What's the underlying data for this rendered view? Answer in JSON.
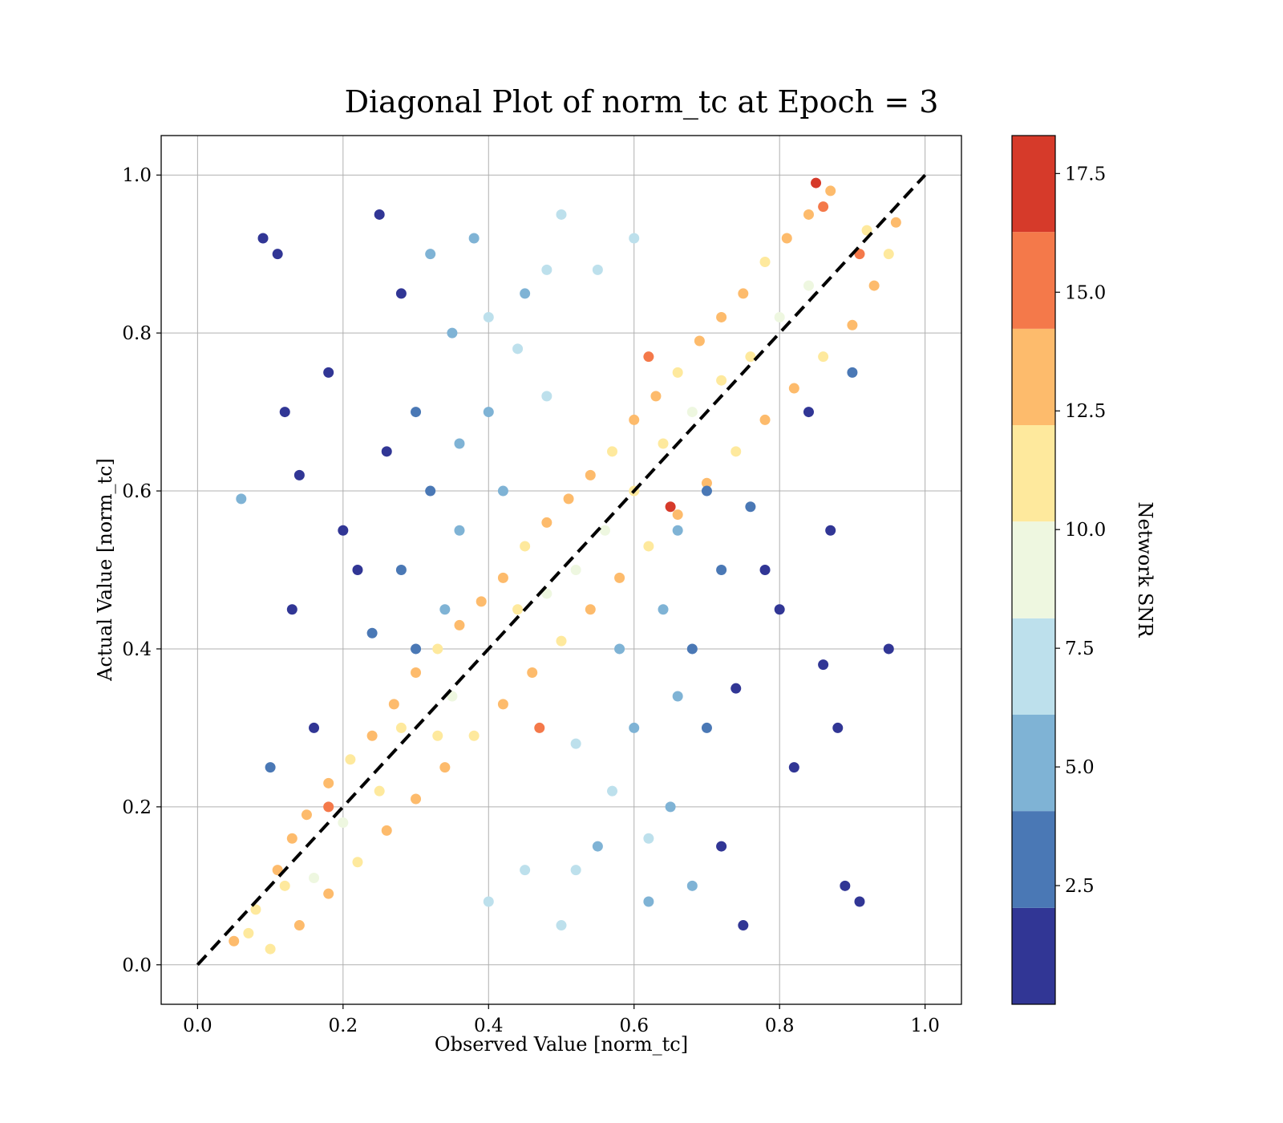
{
  "chart_data": {
    "type": "scatter",
    "title": "Diagonal Plot of norm_tc at Epoch = 3",
    "xlabel": "Observed Value [norm_tc]",
    "ylabel": "Actual Value [norm_tc]",
    "xlim": [
      -0.05,
      1.05
    ],
    "ylim": [
      -0.05,
      1.05
    ],
    "xticks": [
      0.0,
      0.2,
      0.4,
      0.6,
      0.8,
      1.0
    ],
    "yticks": [
      0.0,
      0.2,
      0.4,
      0.6,
      0.8,
      1.0
    ],
    "xtick_labels": [
      "0.0",
      "0.2",
      "0.4",
      "0.6",
      "0.8",
      "1.0"
    ],
    "ytick_labels": [
      "0.0",
      "0.2",
      "0.4",
      "0.6",
      "0.8",
      "1.0"
    ],
    "grid": true,
    "reference_line": {
      "x": [
        0,
        1
      ],
      "y": [
        0,
        1
      ],
      "style": "dashed",
      "color": "#000000"
    },
    "colorbar": {
      "label": "Network SNR",
      "range": [
        0.0,
        18.3
      ],
      "bounds": [
        0.0,
        2.03,
        4.07,
        6.1,
        8.13,
        10.17,
        12.2,
        14.23,
        16.27,
        18.3
      ],
      "colors": [
        "#313695",
        "#4a78b5",
        "#7fb3d5",
        "#bde0ec",
        "#eef7e0",
        "#fee99d",
        "#fdbb6c",
        "#f4794a",
        "#d63a2a",
        "#a50026"
      ],
      "ticks": [
        2.5,
        5.0,
        7.5,
        10.0,
        12.5,
        15.0,
        17.5
      ],
      "tick_labels": [
        "2.5",
        "5.0",
        "7.5",
        "10.0",
        "12.5",
        "15.0",
        "17.5"
      ]
    },
    "series": [
      {
        "name": "",
        "description_of_distribution": ""
      }
    ],
    "points": [
      [
        0.05,
        0.03,
        13
      ],
      [
        0.08,
        0.07,
        12
      ],
      [
        0.11,
        0.12,
        13
      ],
      [
        0.13,
        0.16,
        14
      ],
      [
        0.15,
        0.19,
        13
      ],
      [
        0.18,
        0.23,
        14
      ],
      [
        0.21,
        0.26,
        12
      ],
      [
        0.24,
        0.29,
        13
      ],
      [
        0.27,
        0.33,
        14
      ],
      [
        0.3,
        0.37,
        13
      ],
      [
        0.33,
        0.4,
        12
      ],
      [
        0.36,
        0.43,
        14
      ],
      [
        0.39,
        0.46,
        13
      ],
      [
        0.42,
        0.49,
        14
      ],
      [
        0.45,
        0.53,
        12
      ],
      [
        0.48,
        0.56,
        13
      ],
      [
        0.51,
        0.59,
        14
      ],
      [
        0.54,
        0.62,
        13
      ],
      [
        0.57,
        0.65,
        12
      ],
      [
        0.6,
        0.69,
        14
      ],
      [
        0.63,
        0.72,
        13
      ],
      [
        0.66,
        0.75,
        12
      ],
      [
        0.69,
        0.79,
        14
      ],
      [
        0.72,
        0.82,
        13
      ],
      [
        0.75,
        0.85,
        14
      ],
      [
        0.78,
        0.89,
        12
      ],
      [
        0.81,
        0.92,
        13
      ],
      [
        0.84,
        0.95,
        14
      ],
      [
        0.87,
        0.98,
        13
      ],
      [
        0.85,
        0.99,
        17
      ],
      [
        0.1,
        0.02,
        12
      ],
      [
        0.14,
        0.05,
        13
      ],
      [
        0.18,
        0.09,
        14
      ],
      [
        0.22,
        0.13,
        12
      ],
      [
        0.26,
        0.17,
        13
      ],
      [
        0.3,
        0.21,
        14
      ],
      [
        0.34,
        0.25,
        13
      ],
      [
        0.38,
        0.29,
        12
      ],
      [
        0.42,
        0.33,
        14
      ],
      [
        0.46,
        0.37,
        13
      ],
      [
        0.5,
        0.41,
        12
      ],
      [
        0.54,
        0.45,
        14
      ],
      [
        0.58,
        0.49,
        13
      ],
      [
        0.62,
        0.53,
        12
      ],
      [
        0.66,
        0.57,
        14
      ],
      [
        0.7,
        0.61,
        13
      ],
      [
        0.74,
        0.65,
        12
      ],
      [
        0.78,
        0.69,
        14
      ],
      [
        0.82,
        0.73,
        13
      ],
      [
        0.86,
        0.77,
        12
      ],
      [
        0.9,
        0.81,
        14
      ],
      [
        0.93,
        0.86,
        13
      ],
      [
        0.95,
        0.9,
        12
      ],
      [
        0.96,
        0.94,
        13
      ],
      [
        0.65,
        0.58,
        17
      ],
      [
        0.62,
        0.77,
        16
      ],
      [
        0.86,
        0.96,
        16
      ],
      [
        0.91,
        0.9,
        16
      ],
      [
        0.18,
        0.2,
        16
      ],
      [
        0.47,
        0.3,
        16
      ],
      [
        0.07,
        0.04,
        11
      ],
      [
        0.12,
        0.1,
        11
      ],
      [
        0.2,
        0.18,
        10
      ],
      [
        0.28,
        0.3,
        11
      ],
      [
        0.35,
        0.34,
        10
      ],
      [
        0.44,
        0.45,
        11
      ],
      [
        0.52,
        0.5,
        10
      ],
      [
        0.6,
        0.6,
        11
      ],
      [
        0.68,
        0.7,
        10
      ],
      [
        0.76,
        0.77,
        11
      ],
      [
        0.84,
        0.86,
        10
      ],
      [
        0.92,
        0.93,
        11
      ],
      [
        0.16,
        0.11,
        10
      ],
      [
        0.33,
        0.29,
        11
      ],
      [
        0.48,
        0.47,
        10
      ],
      [
        0.64,
        0.66,
        11
      ],
      [
        0.8,
        0.82,
        10
      ],
      [
        0.25,
        0.22,
        11
      ],
      [
        0.56,
        0.55,
        10
      ],
      [
        0.72,
        0.74,
        11
      ],
      [
        0.3,
        0.7,
        3
      ],
      [
        0.28,
        0.85,
        2
      ],
      [
        0.32,
        0.6,
        4
      ],
      [
        0.25,
        0.95,
        2
      ],
      [
        0.35,
        0.8,
        5
      ],
      [
        0.22,
        0.5,
        1
      ],
      [
        0.18,
        0.75,
        1
      ],
      [
        0.14,
        0.62,
        1
      ],
      [
        0.11,
        0.9,
        2
      ],
      [
        0.09,
        0.92,
        1
      ],
      [
        0.34,
        0.45,
        5
      ],
      [
        0.38,
        0.92,
        5
      ],
      [
        0.4,
        0.7,
        6
      ],
      [
        0.45,
        0.85,
        6
      ],
      [
        0.5,
        0.95,
        7
      ],
      [
        0.55,
        0.88,
        7
      ],
      [
        0.6,
        0.92,
        8
      ],
      [
        0.42,
        0.6,
        6
      ],
      [
        0.48,
        0.72,
        7
      ],
      [
        0.36,
        0.55,
        5
      ],
      [
        0.28,
        0.5,
        3
      ],
      [
        0.26,
        0.65,
        2
      ],
      [
        0.3,
        0.4,
        4
      ],
      [
        0.24,
        0.42,
        3
      ],
      [
        0.2,
        0.55,
        2
      ],
      [
        0.16,
        0.3,
        2
      ],
      [
        0.13,
        0.45,
        1
      ],
      [
        0.12,
        0.7,
        1
      ],
      [
        0.1,
        0.25,
        3
      ],
      [
        0.06,
        0.59,
        6
      ],
      [
        0.7,
        0.3,
        3
      ],
      [
        0.72,
        0.15,
        2
      ],
      [
        0.68,
        0.4,
        4
      ],
      [
        0.75,
        0.05,
        2
      ],
      [
        0.65,
        0.2,
        5
      ],
      [
        0.78,
        0.5,
        1
      ],
      [
        0.82,
        0.25,
        1
      ],
      [
        0.86,
        0.38,
        1
      ],
      [
        0.89,
        0.1,
        2
      ],
      [
        0.91,
        0.08,
        1
      ],
      [
        0.66,
        0.55,
        5
      ],
      [
        0.62,
        0.08,
        5
      ],
      [
        0.6,
        0.3,
        6
      ],
      [
        0.55,
        0.15,
        6
      ],
      [
        0.5,
        0.05,
        7
      ],
      [
        0.45,
        0.12,
        7
      ],
      [
        0.4,
        0.08,
        8
      ],
      [
        0.58,
        0.4,
        6
      ],
      [
        0.52,
        0.28,
        7
      ],
      [
        0.64,
        0.45,
        5
      ],
      [
        0.72,
        0.5,
        3
      ],
      [
        0.74,
        0.35,
        2
      ],
      [
        0.7,
        0.6,
        4
      ],
      [
        0.76,
        0.58,
        3
      ],
      [
        0.8,
        0.45,
        2
      ],
      [
        0.84,
        0.7,
        2
      ],
      [
        0.87,
        0.55,
        1
      ],
      [
        0.88,
        0.3,
        1
      ],
      [
        0.9,
        0.75,
        3
      ],
      [
        0.95,
        0.4,
        1
      ],
      [
        0.57,
        0.22,
        7
      ],
      [
        0.44,
        0.78,
        7
      ],
      [
        0.66,
        0.34,
        6
      ],
      [
        0.36,
        0.66,
        6
      ],
      [
        0.62,
        0.16,
        8
      ],
      [
        0.4,
        0.82,
        8
      ],
      [
        0.52,
        0.12,
        8
      ],
      [
        0.48,
        0.88,
        8
      ],
      [
        0.68,
        0.1,
        5
      ],
      [
        0.32,
        0.9,
        5
      ]
    ]
  }
}
